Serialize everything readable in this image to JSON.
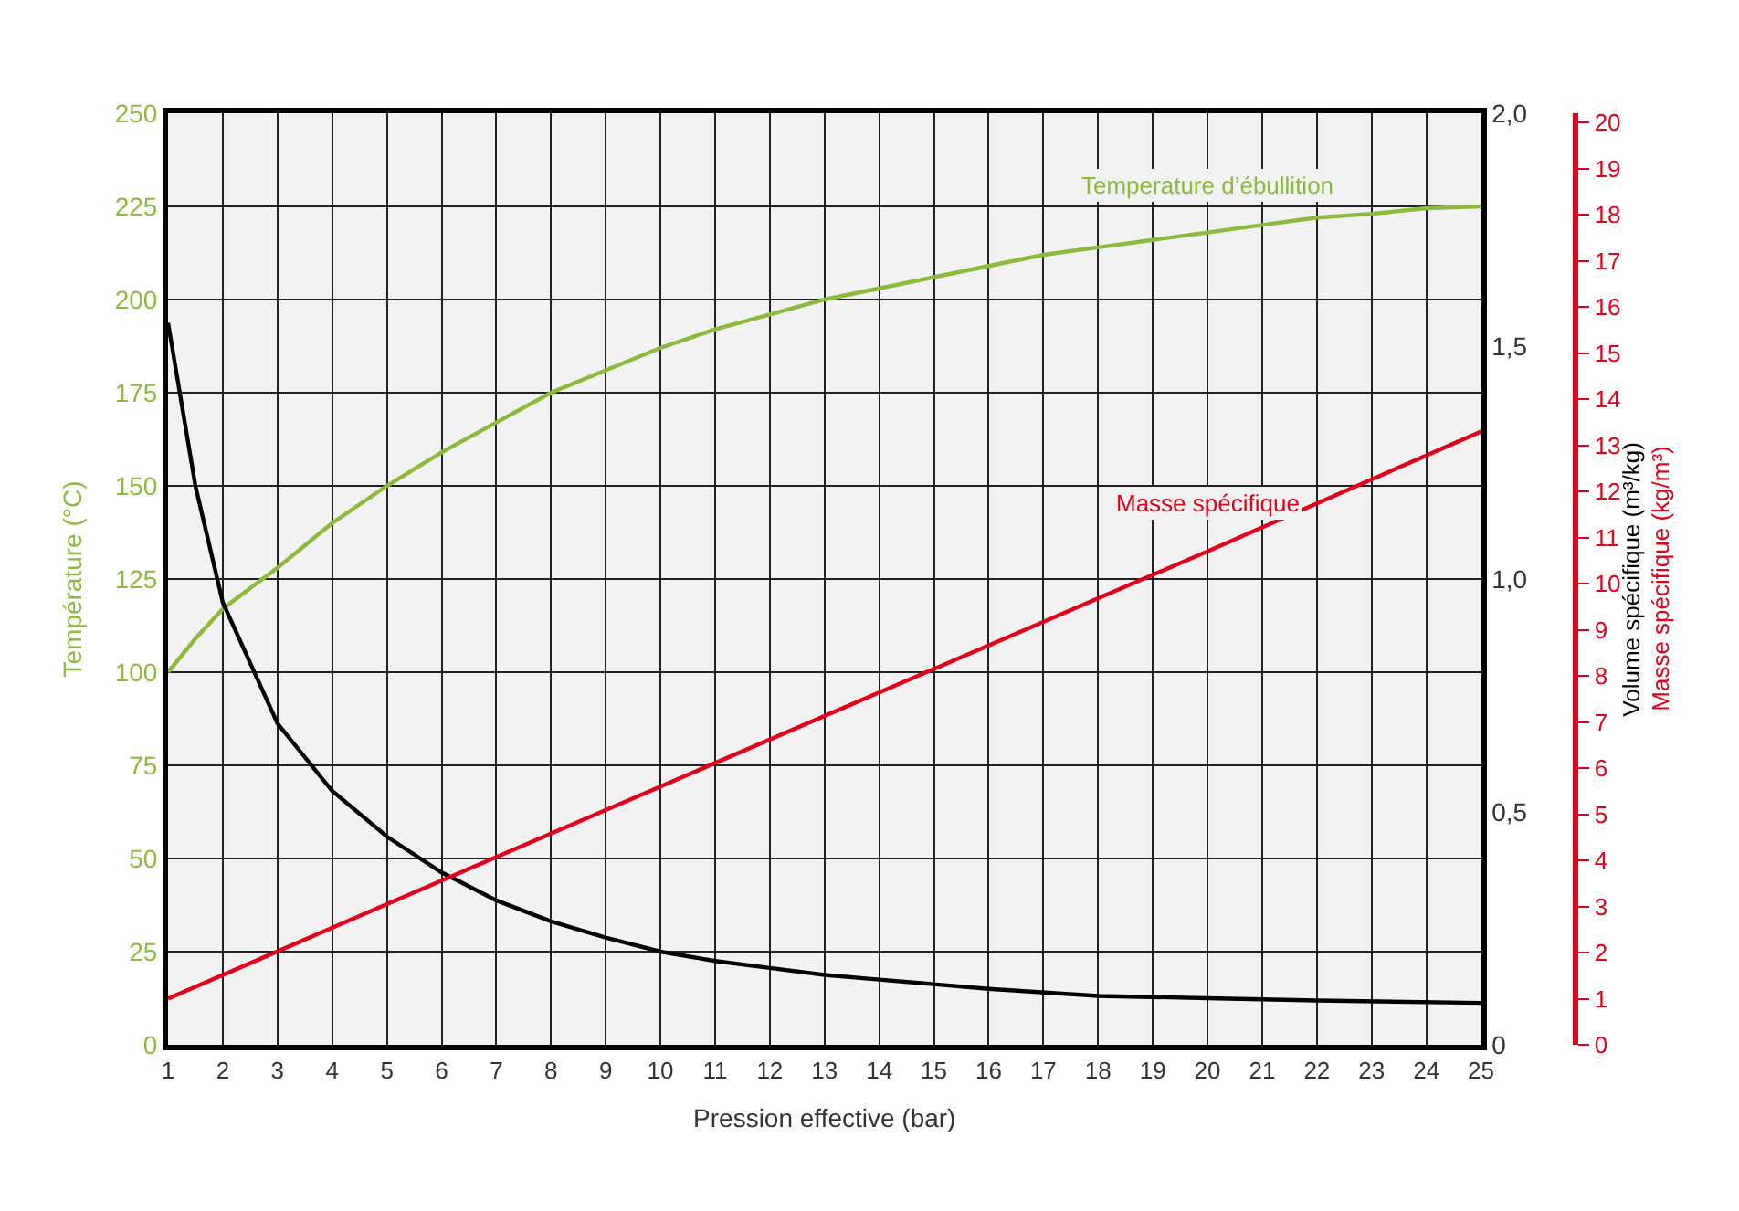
{
  "chart_data": {
    "type": "line",
    "xlabel": "Pression effective (bar)",
    "ylabel": "Température (°C)",
    "y2label": "Volume spécifique (m³/kg)",
    "y3label": "Masse spécifique (kg/m³)",
    "xlim": [
      1,
      25
    ],
    "xticks": [
      1,
      2,
      3,
      4,
      5,
      6,
      7,
      8,
      9,
      10,
      11,
      12,
      13,
      14,
      15,
      16,
      17,
      18,
      19,
      20,
      21,
      22,
      23,
      24,
      25
    ],
    "ylim": [
      0,
      250
    ],
    "yticks": [
      0,
      25,
      50,
      75,
      100,
      125,
      150,
      175,
      200,
      225,
      250
    ],
    "y2lim": [
      0,
      2
    ],
    "y2ticks": [
      {
        "value": 0,
        "label": "0"
      },
      {
        "value": 0.5,
        "label": "0,5"
      },
      {
        "value": 1,
        "label": "1,0"
      },
      {
        "value": 1.5,
        "label": "1,5"
      },
      {
        "value": 2,
        "label": "2,0"
      }
    ],
    "y3lim": [
      0,
      20.2
    ],
    "y3ticks": [
      0,
      1,
      2,
      3,
      4,
      5,
      6,
      7,
      8,
      9,
      10,
      11,
      12,
      13,
      14,
      15,
      16,
      17,
      18,
      19,
      20
    ],
    "grid": true,
    "legend": false,
    "marker": "none",
    "line_style": "solid",
    "series": [
      {
        "name": "Temperature d’ébullition",
        "color": "#8cba3c",
        "x": [
          1,
          1.5,
          2,
          3,
          4,
          5,
          6,
          7,
          8,
          9,
          10,
          11,
          12,
          13,
          14,
          15,
          16,
          17,
          18,
          19,
          20,
          21,
          22,
          23,
          24,
          25
        ],
        "values": [
          100,
          109,
          117,
          128,
          140,
          150,
          159,
          167,
          175,
          181,
          187,
          192,
          196,
          200,
          203,
          206,
          209,
          212,
          214,
          216,
          218,
          220,
          222,
          223,
          224.5,
          225
        ]
      },
      {
        "color": "#000000",
        "axis": "y2",
        "x": [
          1,
          1.5,
          2,
          3,
          4,
          5,
          6,
          7,
          8,
          9,
          10,
          11,
          12,
          13,
          14,
          16,
          18,
          20,
          22,
          25
        ],
        "values": [
          1.55,
          1.2,
          0.95,
          0.69,
          0.545,
          0.447,
          0.37,
          0.31,
          0.265,
          0.23,
          0.2,
          0.18,
          0.165,
          0.15,
          0.14,
          0.12,
          0.105,
          0.1,
          0.095,
          0.09
        ]
      },
      {
        "name": "Masse spécifique",
        "color": "#e2001a",
        "axis": "y3",
        "x": [
          1,
          5,
          10,
          15,
          20,
          25
        ],
        "values": [
          1.0,
          3.05,
          5.6,
          8.15,
          10.7,
          13.3
        ]
      }
    ]
  }
}
